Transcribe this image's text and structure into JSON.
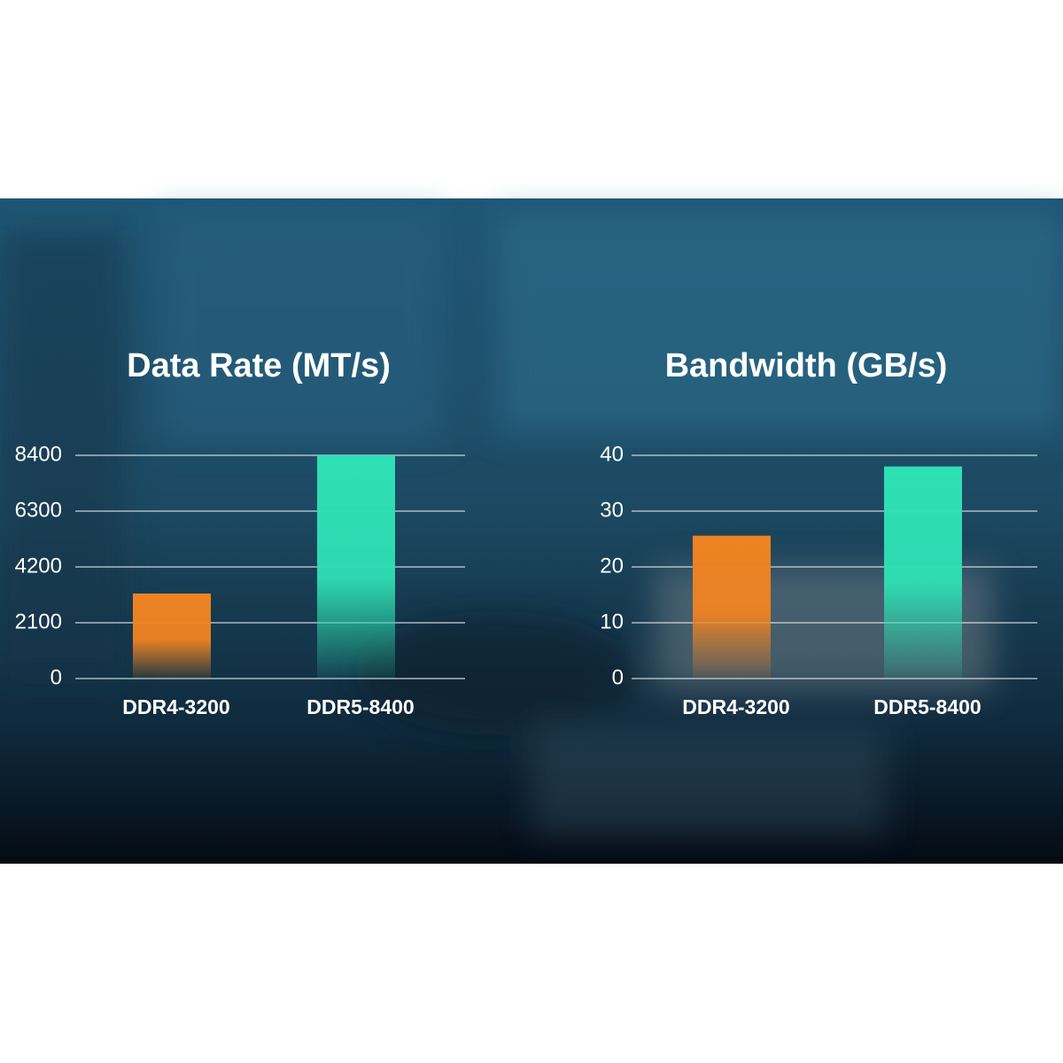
{
  "chart_data": [
    {
      "type": "bar",
      "title": "Data Rate (MT/s)",
      "categories": [
        "DDR4-3200",
        "DDR5-8400"
      ],
      "values": [
        3200,
        8400
      ],
      "colors": [
        "#ee8322",
        "#2ee0b4"
      ],
      "ylim": [
        0,
        8400
      ],
      "yticks": [
        0,
        2100,
        4200,
        6300,
        8400
      ],
      "grid": true
    },
    {
      "type": "bar",
      "title": "Bandwidth (GB/s)",
      "categories": [
        "DDR4-3200",
        "DDR5-8400"
      ],
      "values": [
        25.6,
        38
      ],
      "colors": [
        "#ee8322",
        "#2ee0b4"
      ],
      "ylim": [
        0,
        40
      ],
      "yticks": [
        0,
        10,
        20,
        30,
        40
      ],
      "grid": true
    }
  ]
}
